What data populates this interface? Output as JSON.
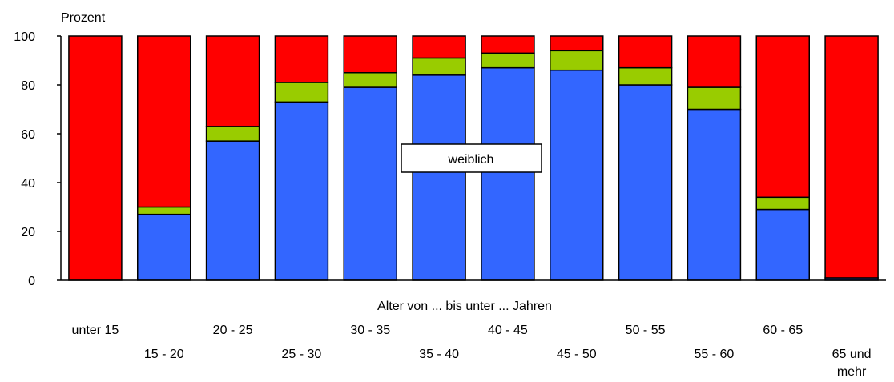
{
  "chart_data": {
    "type": "bar",
    "stacked": true,
    "percent": true,
    "ylabel": "Prozent",
    "xlabel": "Alter von ... bis unter ... Jahren",
    "legend_label": "weiblich",
    "ylim": [
      0,
      100
    ],
    "yticks": [
      "0",
      "20",
      "40",
      "60",
      "80",
      "100"
    ],
    "categories": [
      [
        "unter 15"
      ],
      [
        "15 - 20"
      ],
      [
        "20 - 25"
      ],
      [
        "25 - 30"
      ],
      [
        "30 - 35"
      ],
      [
        "35 - 40"
      ],
      [
        "40 - 45"
      ],
      [
        "45 - 50"
      ],
      [
        "50 - 55"
      ],
      [
        "55 - 60"
      ],
      [
        "60 - 65"
      ],
      [
        "65 und",
        "mehr"
      ]
    ],
    "series": [
      {
        "color": "#3366ff",
        "values": [
          0,
          27,
          57,
          73,
          79,
          84,
          87,
          86,
          80,
          70,
          29,
          1
        ]
      },
      {
        "color": "#99cc00",
        "values": [
          0,
          3,
          6,
          8,
          6,
          7,
          6,
          8,
          7,
          9,
          5,
          0
        ]
      },
      {
        "color": "#ff0000",
        "values": [
          100,
          70,
          37,
          19,
          15,
          9,
          7,
          6,
          13,
          21,
          66,
          99
        ]
      }
    ],
    "grid": false
  }
}
